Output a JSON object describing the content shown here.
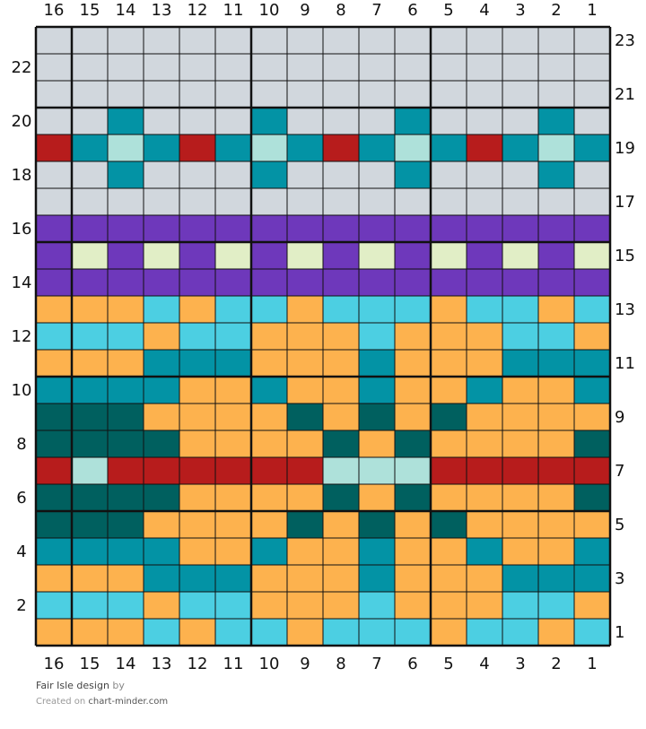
{
  "chart_data": {
    "type": "knitting-chart",
    "columns": 16,
    "rows": 23,
    "column_labels_right_to_left": [
      "16",
      "15",
      "14",
      "13",
      "12",
      "11",
      "10",
      "9",
      "8",
      "7",
      "6",
      "5",
      "4",
      "3",
      "2",
      "1"
    ],
    "row_labels_left": [
      "22",
      "20",
      "18",
      "16",
      "14",
      "12",
      "10",
      "8",
      "6",
      "4",
      "2"
    ],
    "row_labels_right": [
      "23",
      "21",
      "19",
      "17",
      "15",
      "13",
      "11",
      "9",
      "7",
      "5",
      "3",
      "1"
    ],
    "palette": {
      "G": "#d1d7dd",
      "T": "#0393a5",
      "M": "#aee1da",
      "R": "#b71c1c",
      "P": "#6e38bb",
      "L": "#e1eec6",
      "O": "#fdb24e",
      "C": "#4ccfe2",
      "D": "#00605f"
    },
    "grid_rows_top_to_bottom": [
      "GGGGGGGGGGGGGGGG",
      "GGGGGGGGGGGGGGGG",
      "GGGGGGGGGGGGGGGG",
      "GGTGGGTGGGTGGGTG",
      "RTMTRTMTRTMTRTMT",
      "GGTGGGTGGGTGGGTG",
      "GGGGGGGGGGGGGGGG",
      "PPPPPPPPPPPPPPPP",
      "PLPLPLPLPLPLPLPL",
      "PPPPPPPPPPPPPPPP",
      "OOOCOCCOCCCOCCOC",
      "CCCOCCOOOCOOOCCO",
      "OOOTTTOOOTOOOTTT",
      "TTTTOOTOOTOOTOOT",
      "DDDOOOODODODOOOO",
      "DDDDOOOODODOOOOD",
      "RMRRRRRRMMMRRRRR",
      "DDDDOOOODODOOOOD",
      "DDDOOOODODODOOOO",
      "TTTTOOTOOTOOTOOT",
      "OOOTTTOOOTOOOTTT",
      "CCCOCCOOOCOOOCCO",
      "OOOCOCCOCCCOCCOC"
    ]
  },
  "footer": {
    "design_name": "Fair Isle design",
    "by": "by",
    "created_on": "Created on",
    "site": "chart-minder.com"
  }
}
